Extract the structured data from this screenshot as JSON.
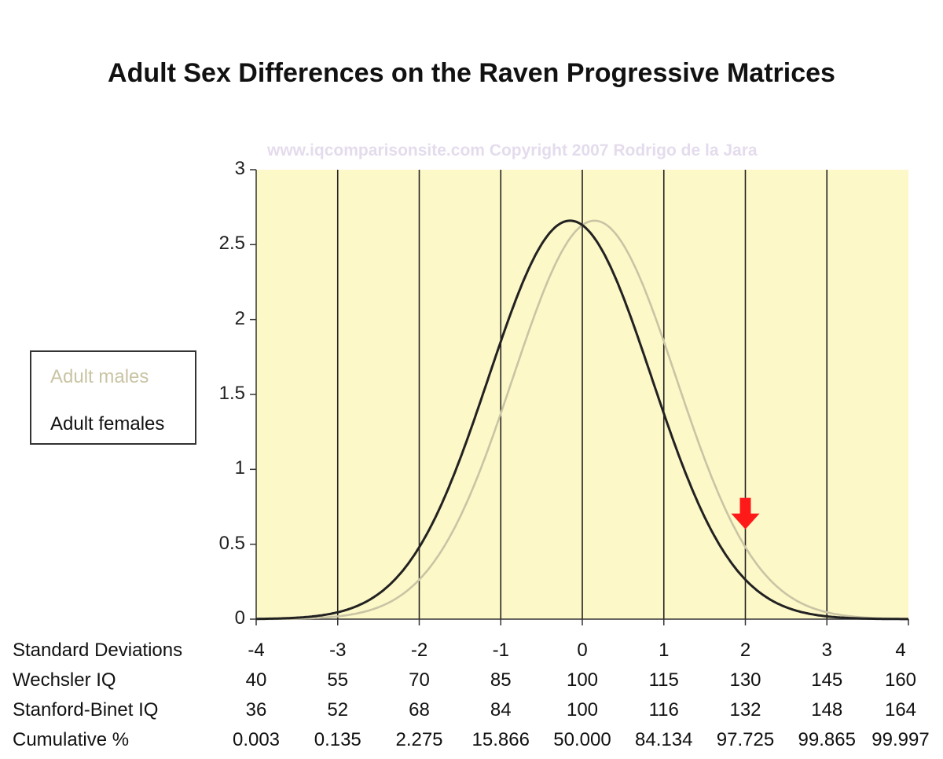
{
  "chart_data": {
    "type": "line",
    "title": "Adult Sex Differences on the Raven Progressive Matrices",
    "watermark": "www.iqcomparisonsite.com  Copyright 2007 Rodrigo de la Jara",
    "ylim": [
      0,
      3
    ],
    "yticks": [
      "0",
      "0.5",
      "1",
      "1.5",
      "2",
      "2.5",
      "3"
    ],
    "xlim": [
      -4,
      4
    ],
    "grid": "vertical lines at each standard deviation",
    "background_color": "#fdf8c8",
    "series": [
      {
        "name": "Adult males",
        "mean": 0.15,
        "peak": 2.66,
        "color": "#c9c4a4"
      },
      {
        "name": "Adult females",
        "mean": -0.15,
        "peak": 2.66,
        "color": "#222222"
      }
    ],
    "annotation": {
      "type": "red-down-arrow",
      "x": 2.0,
      "y": 0.6,
      "color": "#ff1a1a"
    },
    "legend": {
      "position": "left",
      "entries": [
        "Adult males",
        "Adult females"
      ]
    },
    "table": {
      "rows": [
        {
          "label": "Standard Deviations",
          "values": [
            "-4",
            "-3",
            "-2",
            "-1",
            "0",
            "1",
            "2",
            "3",
            "4"
          ]
        },
        {
          "label": "Wechsler IQ",
          "values": [
            "40",
            "55",
            "70",
            "85",
            "100",
            "115",
            "130",
            "145",
            "160"
          ]
        },
        {
          "label": "Stanford-Binet IQ",
          "values": [
            "36",
            "52",
            "68",
            "84",
            "100",
            "116",
            "132",
            "148",
            "164"
          ]
        },
        {
          "label": "Cumulative %",
          "values": [
            "0.003",
            "0.135",
            "2.275",
            "15.866",
            "50.000",
            "84.134",
            "97.725",
            "99.865",
            "99.997"
          ]
        }
      ]
    }
  }
}
